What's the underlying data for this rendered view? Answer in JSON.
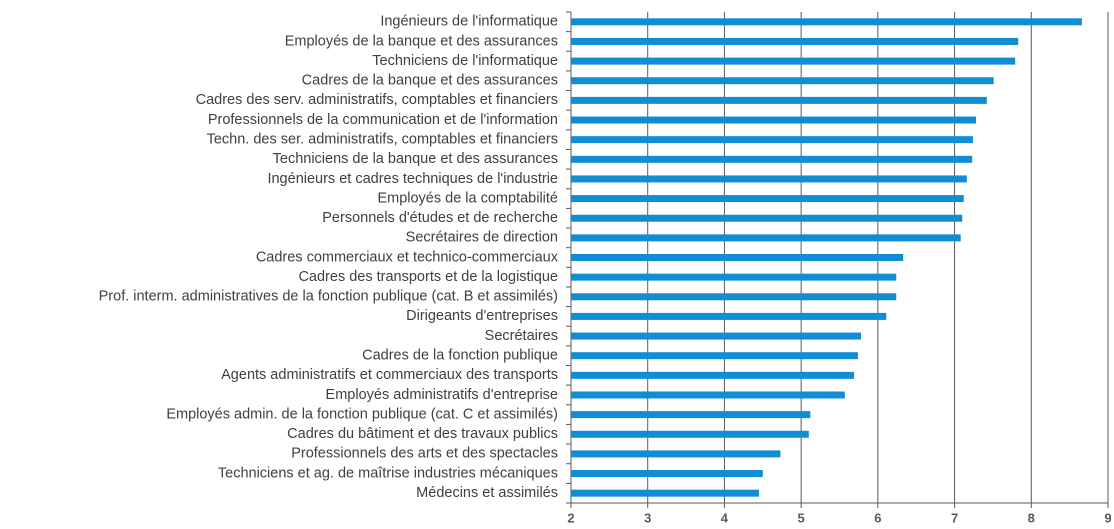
{
  "chart_data": {
    "type": "barh",
    "categories": [
      "Ingénieurs de l'informatique",
      "Employés de la banque et des assurances",
      "Techniciens de l'informatique",
      "Cadres de la banque et des assurances",
      "Cadres des serv. administratifs, comptables et financiers",
      "Professionnels de la communication et de l'information",
      "Techn. des ser. administratifs, comptables et financiers",
      "Techniciens de la banque et des assurances",
      "Ingénieurs et cadres techniques de l'industrie",
      "Employés de la comptabilité",
      "Personnels d'études et de recherche",
      "Secrétaires de direction",
      "Cadres commerciaux et technico-commerciaux",
      "Cadres des transports et de la logistique",
      "Prof. interm. administratives de la fonction publique (cat. B et assimilés)",
      "Dirigeants d'entreprises",
      "Secrétaires",
      "Cadres de la fonction publique",
      "Agents administratifs et commerciaux des transports",
      "Employés administratifs d'entreprise",
      "Employés admin. de la fonction publique (cat. C et assimilés)",
      "Cadres du bâtiment et des travaux publics",
      "Professionnels des arts et des spectacles",
      "Techniciens et ag. de maîtrise industries mécaniques",
      "Médecins et assimilés"
    ],
    "values": [
      8.66,
      7.83,
      7.79,
      7.51,
      7.42,
      7.28,
      7.24,
      7.23,
      7.16,
      7.12,
      7.1,
      7.08,
      6.33,
      6.24,
      6.24,
      6.11,
      5.78,
      5.74,
      5.69,
      5.57,
      5.12,
      5.1,
      4.73,
      4.5,
      4.45
    ],
    "color": "#0f8ed6",
    "xlim": [
      2,
      9
    ],
    "xticks": [
      2,
      3,
      4,
      5,
      6,
      7,
      8,
      9
    ],
    "grid": true
  }
}
